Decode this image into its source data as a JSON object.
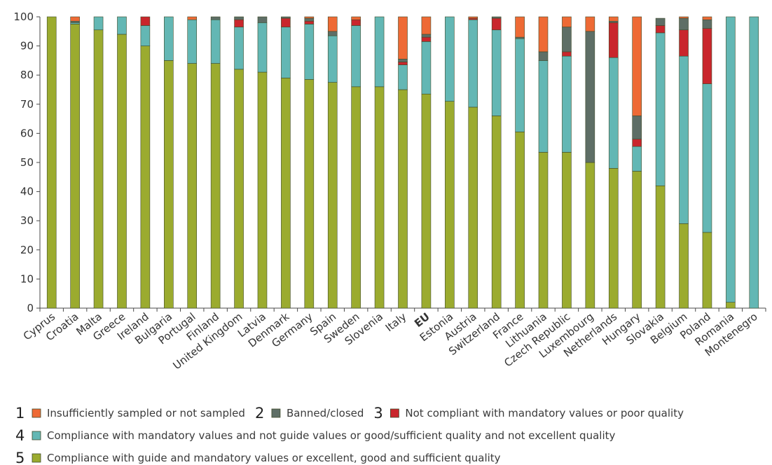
{
  "chart_data": {
    "type": "bar",
    "stacked": true,
    "title": "",
    "xlabel": "",
    "ylabel": "",
    "ylim": [
      0,
      100
    ],
    "yticks": [
      0,
      10,
      20,
      30,
      40,
      50,
      60,
      70,
      80,
      90,
      100
    ],
    "grid": false,
    "legend_position": "bottom",
    "categories": [
      "Cyprus",
      "Croatia",
      "Malta",
      "Greece",
      "Ireland",
      "Bulgaria",
      "Portugal",
      "Finland",
      "United Kingdom",
      "Latvia",
      "Denmark",
      "Germany",
      "Spain",
      "Sweden",
      "Slovenia",
      "Italy",
      "EU",
      "Estonia",
      "Austria",
      "Switzerland",
      "France",
      "Lithuania",
      "Czech Republic",
      "Luxembourg",
      "Netherlands",
      "Hungary",
      "Slovakia",
      "Belgium",
      "Poland",
      "Romania",
      "Montenegro"
    ],
    "bold_categories": [
      "EU"
    ],
    "series": [
      {
        "key": "5",
        "name": "Compliance with guide and mandatory values or excellent, good and sufficient quality",
        "color": "#9bab2f",
        "values": [
          100,
          97.5,
          95.5,
          94,
          90,
          85,
          84,
          84,
          82,
          81,
          79,
          78.5,
          77.5,
          76,
          76,
          75,
          73.5,
          71,
          69,
          66,
          60.5,
          53.5,
          53.5,
          50,
          48,
          47,
          42,
          29,
          26,
          2,
          0
        ]
      },
      {
        "key": "4",
        "name": "Compliance with mandatory values and not guide values or good/sufficient quality and not excellent quality",
        "color": "#63b7b4",
        "values": [
          0,
          0.5,
          4.5,
          6,
          7,
          15,
          15,
          15,
          14.5,
          17,
          17.5,
          19,
          16,
          21,
          24,
          8.5,
          18,
          29,
          30,
          29.5,
          32,
          31.5,
          33,
          0,
          38,
          8.5,
          52.5,
          57.5,
          51,
          98,
          100
        ]
      },
      {
        "key": "3",
        "name": "Not compliant with mandatory values or poor quality",
        "color": "#c9262c",
        "values": [
          0,
          0,
          0,
          0,
          3,
          0,
          0,
          0,
          2.5,
          0,
          3,
          1,
          0,
          2,
          0,
          1,
          1.5,
          0,
          0.5,
          4,
          0,
          0,
          1.5,
          0,
          12,
          2.5,
          2.5,
          9,
          19,
          0,
          0
        ]
      },
      {
        "key": "2",
        "name": "Banned/closed",
        "color": "#5e6e66",
        "values": [
          0,
          0.5,
          0,
          0,
          0,
          0,
          0,
          1,
          1,
          2,
          0.5,
          1,
          1.5,
          0,
          0,
          1,
          1,
          0,
          0,
          0.5,
          0.5,
          3,
          8.5,
          45,
          0.5,
          8,
          2.5,
          4,
          3,
          0,
          0
        ]
      },
      {
        "key": "1",
        "name": "Insufficiently sampled or not sampled",
        "color": "#ee6a35",
        "values": [
          0,
          1.5,
          0,
          0,
          0,
          0,
          1,
          0,
          0,
          0,
          0,
          0.5,
          5,
          1,
          0,
          14.5,
          6,
          0,
          0.5,
          0,
          7,
          12,
          3.5,
          5,
          1.5,
          34,
          0,
          0.5,
          1,
          0,
          0
        ]
      }
    ],
    "legend_rows": [
      [
        "1",
        "2",
        "3"
      ],
      [
        "4"
      ],
      [
        "5"
      ]
    ]
  },
  "colors": {
    "axis": "#4a4a4a",
    "bar_border": "#3f4a2a"
  }
}
